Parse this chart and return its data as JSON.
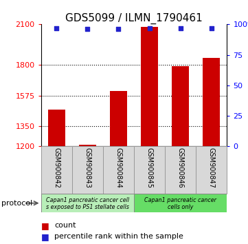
{
  "title": "GDS5099 / ILMN_1790461",
  "samples": [
    "GSM900842",
    "GSM900843",
    "GSM900844",
    "GSM900845",
    "GSM900846",
    "GSM900847"
  ],
  "counts": [
    1470,
    1212,
    1610,
    2080,
    1790,
    1855
  ],
  "percentiles": [
    97,
    96,
    96,
    97,
    97,
    97
  ],
  "ylim_left": [
    1200,
    2100
  ],
  "ylim_right": [
    0,
    100
  ],
  "yticks_left": [
    1200,
    1350,
    1575,
    1800,
    2100
  ],
  "ytick_labels_left": [
    "1200",
    "1350",
    "1575",
    "1800",
    "2100"
  ],
  "yticks_right": [
    0,
    25,
    50,
    75,
    100
  ],
  "ytick_labels_right": [
    "0",
    "25",
    "50",
    "75",
    "100%"
  ],
  "hlines": [
    1350,
    1575,
    1800
  ],
  "bar_color": "#cc0000",
  "dot_color": "#2222cc",
  "protocol_group1_label1": "Capan1 pancreatic cancer cell",
  "protocol_group1_label2": "s exposed to PS1 stellate cells",
  "protocol_group1_color": "#b8eeb8",
  "protocol_group2_label1": "Capan1 pancreatic cancer",
  "protocol_group2_label2": "cells only",
  "protocol_group2_color": "#66dd66",
  "title_fontsize": 11,
  "tick_fontsize": 8,
  "sample_fontsize": 7,
  "legend_fontsize": 8,
  "protocol_fontsize": 8
}
